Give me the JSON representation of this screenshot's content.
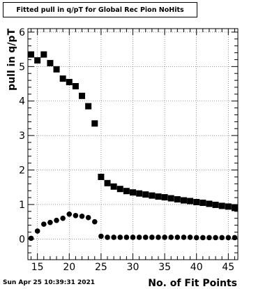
{
  "chart_data": {
    "type": "scatter",
    "title": "Fitted pull in q/pT for Global Rec Pion NoHits",
    "xlabel": "No. of Fit Points",
    "ylabel": "pull in q/pT",
    "xlim": [
      13.5,
      46.5
    ],
    "ylim": [
      -0.6,
      6.1
    ],
    "x_ticks": [
      15,
      20,
      25,
      30,
      35,
      40,
      45
    ],
    "y_ticks": [
      0,
      1,
      2,
      3,
      4,
      5,
      6
    ],
    "grid": true,
    "series": [
      {
        "marker": "square",
        "x": [
          14,
          15,
          16,
          17,
          18,
          19,
          20,
          21,
          22,
          23,
          24,
          25,
          26,
          27,
          28,
          29,
          30,
          31,
          32,
          33,
          34,
          35,
          36,
          37,
          38,
          39,
          40,
          41,
          42,
          43,
          44,
          45,
          46
        ],
        "values": [
          5.35,
          5.18,
          5.35,
          5.1,
          4.92,
          4.65,
          4.55,
          4.43,
          4.15,
          3.85,
          3.35,
          1.8,
          1.62,
          1.52,
          1.45,
          1.39,
          1.35,
          1.32,
          1.29,
          1.26,
          1.23,
          1.21,
          1.18,
          1.15,
          1.12,
          1.1,
          1.07,
          1.05,
          1.02,
          0.99,
          0.96,
          0.94,
          0.9
        ]
      },
      {
        "marker": "circle",
        "x": [
          14,
          15,
          16,
          17,
          18,
          19,
          20,
          21,
          22,
          23,
          24,
          25,
          26,
          27,
          28,
          29,
          30,
          31,
          32,
          33,
          34,
          35,
          36,
          37,
          38,
          39,
          40,
          41,
          42,
          43,
          44,
          45,
          46
        ],
        "values": [
          0.02,
          0.23,
          0.43,
          0.48,
          0.54,
          0.6,
          0.72,
          0.68,
          0.66,
          0.62,
          0.5,
          0.08,
          0.05,
          0.05,
          0.05,
          0.05,
          0.05,
          0.05,
          0.05,
          0.05,
          0.05,
          0.05,
          0.05,
          0.05,
          0.05,
          0.05,
          0.04,
          0.04,
          0.04,
          0.04,
          0.04,
          0.04,
          0.04
        ]
      }
    ]
  },
  "footer": {
    "date": "Sun Apr 25 10:39:31 2021"
  }
}
